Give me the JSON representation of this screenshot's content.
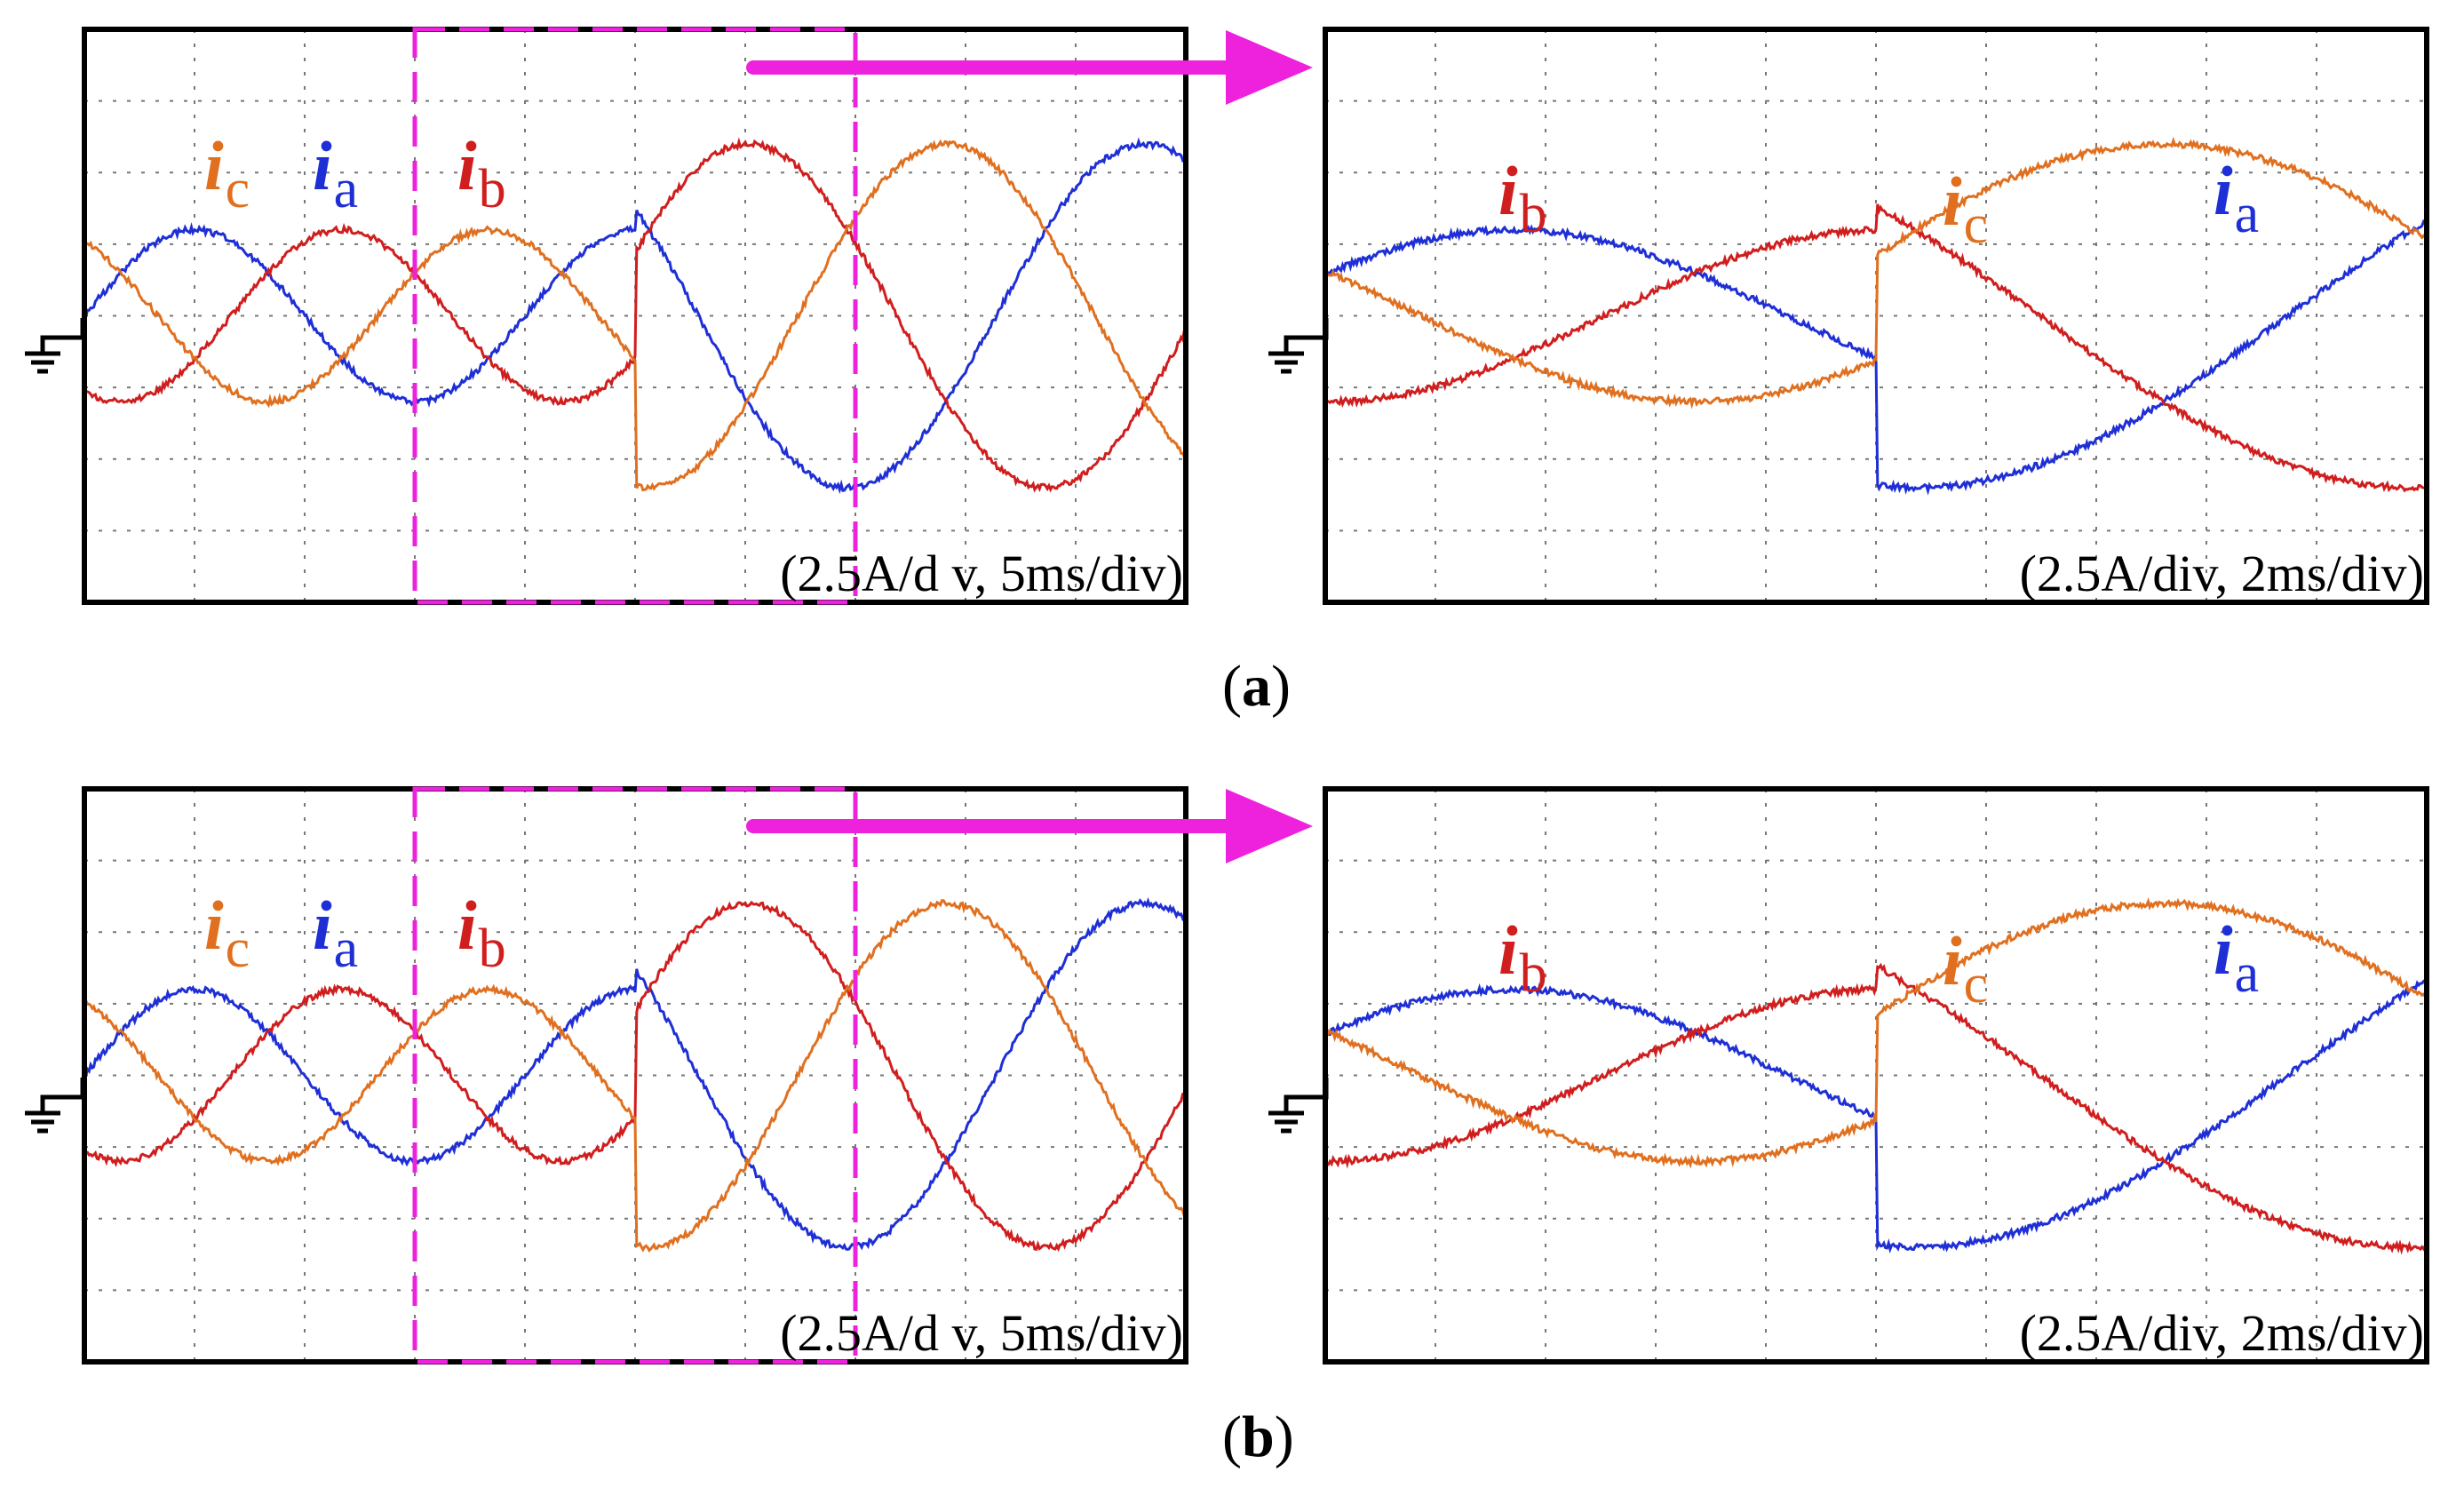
{
  "figure": {
    "captions": [
      "(a)",
      "(b)"
    ],
    "caption_letters": [
      "a",
      "b"
    ]
  },
  "colors": {
    "ia": "#1f2fd6",
    "ib": "#d01e1e",
    "ic": "#e07020",
    "zoom_marker": "#ee22dd",
    "grid": "#777777",
    "frame": "#000000"
  },
  "trace_labels": {
    "ia": {
      "main": "i",
      "sub": "a"
    },
    "ib": {
      "main": "i",
      "sub": "b"
    },
    "ic": {
      "main": "i",
      "sub": "c"
    }
  },
  "icons": {
    "ground": "ground-symbol-icon",
    "zoom_arrow": "zoom-arrow-icon"
  },
  "chart_data": [
    {
      "id": "a-overview",
      "type": "line",
      "scale_label": "(2.5A/d v, 5ms/div)",
      "grid": {
        "x_divisions": 10,
        "y_divisions": 8,
        "on": true
      },
      "time_per_div_ms": 5,
      "amps_per_div": 2.5,
      "step_time_div": 5,
      "amplitude_before_div": 1.2,
      "amplitude_after_div": 2.4,
      "frequency_before_hz": 50,
      "frequency_after_hz": 37,
      "series": [
        {
          "name": "ia",
          "phase_offset_deg": 0
        },
        {
          "name": "ib",
          "phase_offset_deg": -120
        },
        {
          "name": "ic",
          "phase_offset_deg": 120
        }
      ],
      "zoom_window_div": [
        3,
        7
      ]
    },
    {
      "id": "a-zoom",
      "type": "line",
      "scale_label": "(2.5A/div, 2ms/div)",
      "grid": {
        "x_divisions": 10,
        "y_divisions": 8,
        "on": true
      },
      "time_per_div_ms": 2,
      "amps_per_div": 2.5,
      "step_time_div": 5,
      "amplitude_before_div": 1.2,
      "amplitude_after_div": 2.4,
      "series": [
        {
          "name": "ia",
          "phase_offset_deg": 0
        },
        {
          "name": "ib",
          "phase_offset_deg": -120
        },
        {
          "name": "ic",
          "phase_offset_deg": 120
        }
      ]
    },
    {
      "id": "b-overview",
      "type": "line",
      "scale_label": "(2.5A/d v, 5ms/div)",
      "grid": {
        "x_divisions": 10,
        "y_divisions": 8,
        "on": true
      },
      "time_per_div_ms": 5,
      "amps_per_div": 2.5,
      "step_time_div": 5,
      "amplitude_before_div": 1.2,
      "amplitude_after_div": 2.4,
      "frequency_before_hz": 50,
      "frequency_after_hz": 37,
      "series": [
        {
          "name": "ia",
          "phase_offset_deg": 0
        },
        {
          "name": "ib",
          "phase_offset_deg": -120
        },
        {
          "name": "ic",
          "phase_offset_deg": 120
        }
      ],
      "zoom_window_div": [
        3,
        7
      ]
    },
    {
      "id": "b-zoom",
      "type": "line",
      "scale_label": "(2.5A/div, 2ms/div)",
      "grid": {
        "x_divisions": 10,
        "y_divisions": 8,
        "on": true
      },
      "time_per_div_ms": 2,
      "amps_per_div": 2.5,
      "step_time_div": 5,
      "amplitude_before_div": 1.2,
      "amplitude_after_div": 2.4,
      "series": [
        {
          "name": "ia",
          "phase_offset_deg": 0
        },
        {
          "name": "ib",
          "phase_offset_deg": -120
        },
        {
          "name": "ic",
          "phase_offset_deg": 120
        }
      ]
    }
  ]
}
